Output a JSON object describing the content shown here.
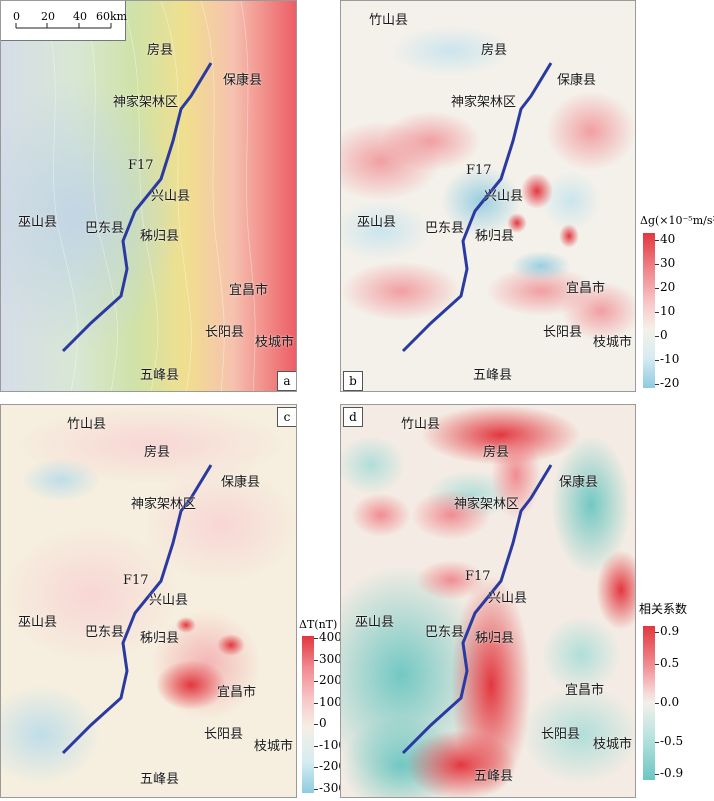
{
  "panels": {
    "a": {
      "letter": "a",
      "places": {
        "fangxian": "房县",
        "baokang": "保康县",
        "shennongjia": "神家架林区",
        "fault": "F17",
        "xingshan": "兴山县",
        "wushan": "巫山县",
        "badong": "巴东县",
        "zigui": "秭归县",
        "yichang": "宜昌市",
        "changyang": "长阳县",
        "zhicheng": "枝城市",
        "wufeng": "五峰县"
      },
      "scale_bar": {
        "ticks": [
          "0",
          "20",
          "40",
          "60km"
        ]
      }
    },
    "b": {
      "letter": "b",
      "places": {
        "zhushan": "竹山县",
        "fangxian": "房县",
        "baokang": "保康县",
        "shennongjia": "神家架林区",
        "fault": "F17",
        "xingshan": "兴山县",
        "wushan": "巫山县",
        "badong": "巴东县",
        "zigui": "秭归县",
        "yichang": "宜昌市",
        "changyang": "长阳县",
        "zhicheng": "枝城市",
        "wufeng": "五峰县"
      },
      "colorbar": {
        "title": "Δg(×10⁻⁵m/s²)",
        "ticks": [
          "40",
          "30",
          "20",
          "10",
          "0",
          "-10",
          "-20"
        ],
        "range": [
          -20,
          40
        ],
        "colors": [
          "#e2373f",
          "#f08a90",
          "#f7c6c7",
          "#f4f1e8",
          "#d7ecf2",
          "#8fcbe0"
        ]
      }
    },
    "c": {
      "letter": "c",
      "places": {
        "zhushan": "竹山县",
        "fangxian": "房县",
        "baokang": "保康县",
        "shennongjia": "神家架林区",
        "fault": "F17",
        "xingshan": "兴山县",
        "wushan": "巫山县",
        "badong": "巴东县",
        "zigui": "秭归县",
        "yichang": "宜昌市",
        "changyang": "长阳县",
        "zhicheng": "枝城市",
        "wufeng": "五峰县"
      },
      "colorbar": {
        "title": "ΔT(nT)",
        "ticks": [
          "400",
          "300",
          "200",
          "100",
          "0",
          "-100",
          "-200",
          "-300"
        ],
        "range": [
          -300,
          400
        ],
        "colors": [
          "#e2373f",
          "#f08a90",
          "#f7c6c7",
          "#f5efe4",
          "#d7ecf2",
          "#8fcbe0"
        ]
      }
    },
    "d": {
      "letter": "d",
      "places": {
        "zhushan": "竹山县",
        "fangxian": "房县",
        "baokang": "保康县",
        "shennongjia": "神家架林区",
        "fault": "F17",
        "xingshan": "兴山县",
        "wushan": "巫山县",
        "badong": "巴东县",
        "zigui": "秭归县",
        "yichang": "宜昌市",
        "changyang": "长阳县",
        "zhicheng": "枝城市",
        "wufeng": "五峰县"
      },
      "colorbar": {
        "title": "相关系数",
        "ticks": [
          "0.9",
          "0.5",
          "0.0",
          "-0.5",
          "-0.9"
        ],
        "range": [
          -0.9,
          0.9
        ],
        "colors": [
          "#e2373f",
          "#f08a90",
          "#f7d2d2",
          "#f2f0ea",
          "#b9e3e0",
          "#6cc6c1"
        ]
      }
    }
  },
  "colors": {
    "fault_line": "#2b3aa0",
    "positive": "#e2373f",
    "negative_b_c": "#8fcbe0",
    "negative_d": "#6cc6c1"
  }
}
